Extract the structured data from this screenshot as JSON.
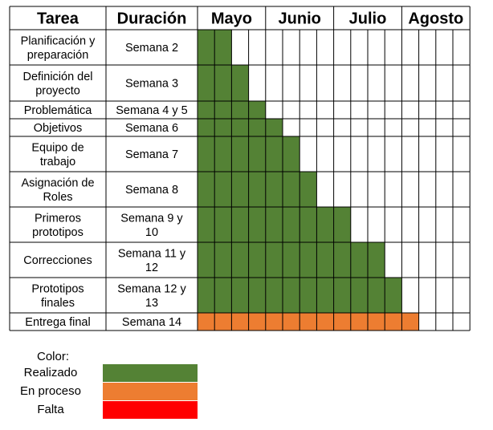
{
  "chart_data": {
    "type": "table",
    "columns": {
      "task": "Tarea",
      "duration": "Duración"
    },
    "months": [
      {
        "label": "Mayo",
        "weeks": 4
      },
      {
        "label": "Junio",
        "weeks": 4
      },
      {
        "label": "Julio",
        "weeks": 4
      },
      {
        "label": "Agosto",
        "weeks": 4
      }
    ],
    "tasks": [
      {
        "task": [
          "Planificación y",
          "preparación"
        ],
        "duration": [
          "Semana 2"
        ],
        "start_week": 1,
        "end_week": 2,
        "status": "Realizado"
      },
      {
        "task": [
          "Definición del",
          "proyecto"
        ],
        "duration": [
          "Semana 3"
        ],
        "start_week": 1,
        "end_week": 3,
        "status": "Realizado"
      },
      {
        "task": [
          "Problemática"
        ],
        "duration": [
          "Semana 4 y 5"
        ],
        "start_week": 1,
        "end_week": 4,
        "status": "Realizado"
      },
      {
        "task": [
          "Objetivos"
        ],
        "duration": [
          "Semana 6"
        ],
        "start_week": 1,
        "end_week": 5,
        "status": "Realizado"
      },
      {
        "task": [
          "Equipo de",
          "trabajo"
        ],
        "duration": [
          "Semana 7"
        ],
        "start_week": 1,
        "end_week": 6,
        "status": "Realizado"
      },
      {
        "task": [
          "Asignación de",
          "Roles"
        ],
        "duration": [
          "Semana 8"
        ],
        "start_week": 1,
        "end_week": 7,
        "status": "Realizado"
      },
      {
        "task": [
          "Primeros",
          "prototipos"
        ],
        "duration": [
          "Semana 9 y",
          "10"
        ],
        "start_week": 1,
        "end_week": 9,
        "status": "Realizado"
      },
      {
        "task": [
          "Correcciones"
        ],
        "duration": [
          "Semana 11 y",
          "12"
        ],
        "start_week": 1,
        "end_week": 11,
        "status": "Realizado"
      },
      {
        "task": [
          "Prototipos",
          "finales"
        ],
        "duration": [
          "Semana 12 y",
          "13"
        ],
        "start_week": 1,
        "end_week": 12,
        "status": "Realizado"
      },
      {
        "task": [
          "Entrega final"
        ],
        "duration": [
          "Semana 14"
        ],
        "start_week": 1,
        "end_week": 13,
        "status": "En proceso"
      }
    ],
    "legend": {
      "title": "Color:",
      "items": [
        {
          "label": "Realizado",
          "color": "#548235"
        },
        {
          "label": "En proceso",
          "color": "#ed7d31"
        },
        {
          "label": "Falta",
          "color": "#ff0000"
        }
      ]
    }
  }
}
